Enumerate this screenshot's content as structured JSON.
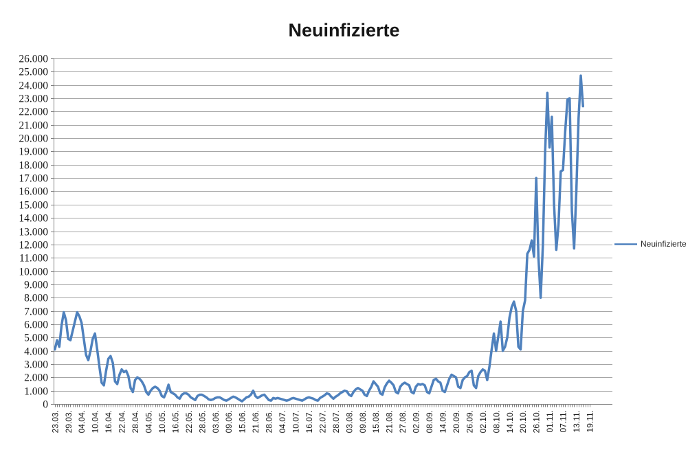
{
  "title": "Neuinfizierte",
  "legend": {
    "label": "Neuinfizierte"
  },
  "chart_data": {
    "type": "line",
    "title": "Neuinfizierte",
    "xlabel": "",
    "ylabel": "",
    "ylim": [
      0,
      26000
    ],
    "y_step": 1000,
    "grid": "horizontal-only",
    "legend_position": "right",
    "x_label_every": 6,
    "x_tick_labels": [
      "23.03.",
      "29.03.",
      "04.04.",
      "10.04.",
      "16.04.",
      "22.04.",
      "28.04.",
      "04.05.",
      "10.05.",
      "16.05.",
      "22.05.",
      "28.05.",
      "03.06.",
      "09.06.",
      "15.06.",
      "21.06.",
      "28.06.",
      "04.07.",
      "10.07.",
      "16.07.",
      "22.07.",
      "28.07.",
      "03.08.",
      "09.08.",
      "15.08.",
      "21.08.",
      "27.08.",
      "02.09.",
      "08.09.",
      "14.09.",
      "20.09.",
      "26.09.",
      "02.10.",
      "08.10.",
      "14.10.",
      "20.10.",
      "26.10.",
      "01.11.",
      "07.11.",
      "13.11.",
      "19.11."
    ],
    "y_tick_labels": [
      "0",
      "1.000",
      "2.000",
      "3.000",
      "4.000",
      "5.000",
      "6.000",
      "7.000",
      "8.000",
      "9.000",
      "10.000",
      "11.000",
      "12.000",
      "13.000",
      "14.000",
      "15.000",
      "16.000",
      "17.000",
      "18.000",
      "19.000",
      "20.000",
      "21.000",
      "22.000",
      "23.000",
      "24.000",
      "25.000",
      "26.000"
    ],
    "series": [
      {
        "name": "Neuinfizierte",
        "color": "#4F81BD",
        "values": [
          4100,
          4800,
          4300,
          5900,
          6900,
          6300,
          4900,
          4800,
          5500,
          6200,
          6900,
          6600,
          6100,
          4900,
          3700,
          3300,
          4000,
          4900,
          5300,
          4100,
          2800,
          1600,
          1400,
          2500,
          3400,
          3600,
          3100,
          1700,
          1500,
          2200,
          2600,
          2400,
          2500,
          2100,
          1200,
          900,
          1800,
          2000,
          1900,
          1700,
          1400,
          900,
          700,
          1000,
          1200,
          1300,
          1200,
          1000,
          600,
          500,
          900,
          1450,
          900,
          800,
          700,
          500,
          400,
          700,
          800,
          800,
          700,
          500,
          400,
          300,
          600,
          700,
          700,
          600,
          500,
          350,
          300,
          350,
          450,
          500,
          500,
          400,
          300,
          250,
          350,
          450,
          550,
          500,
          400,
          300,
          200,
          350,
          500,
          550,
          700,
          1000,
          600,
          450,
          550,
          650,
          700,
          500,
          300,
          250,
          450,
          400,
          450,
          400,
          350,
          300,
          250,
          300,
          400,
          450,
          400,
          350,
          300,
          250,
          350,
          450,
          500,
          450,
          400,
          300,
          250,
          450,
          550,
          650,
          800,
          750,
          550,
          400,
          550,
          650,
          800,
          900,
          1000,
          950,
          700,
          600,
          900,
          1100,
          1200,
          1100,
          1000,
          700,
          600,
          1000,
          1300,
          1700,
          1500,
          1300,
          800,
          700,
          1250,
          1550,
          1750,
          1600,
          1400,
          900,
          800,
          1300,
          1500,
          1600,
          1500,
          1400,
          900,
          800,
          1300,
          1500,
          1450,
          1500,
          1400,
          900,
          800,
          1300,
          1800,
          1900,
          1700,
          1600,
          1000,
          900,
          1400,
          1900,
          2200,
          2100,
          2000,
          1300,
          1200,
          1800,
          2000,
          2100,
          2400,
          2500,
          1400,
          1200,
          2100,
          2400,
          2600,
          2500,
          1800,
          2800,
          4100,
          5300,
          4000,
          5100,
          6200,
          4000,
          4300,
          5000,
          6500,
          7300,
          7700,
          7000,
          4300,
          4100,
          7000,
          7800,
          11300,
          11600,
          12300,
          11100,
          17000,
          11000,
          8000,
          12000,
          19000,
          23400,
          19300,
          21600,
          15000,
          11600,
          13500,
          17500,
          17600,
          20500,
          22900,
          23000,
          14500,
          11700,
          16000,
          21500,
          24700,
          22400
        ]
      }
    ]
  }
}
